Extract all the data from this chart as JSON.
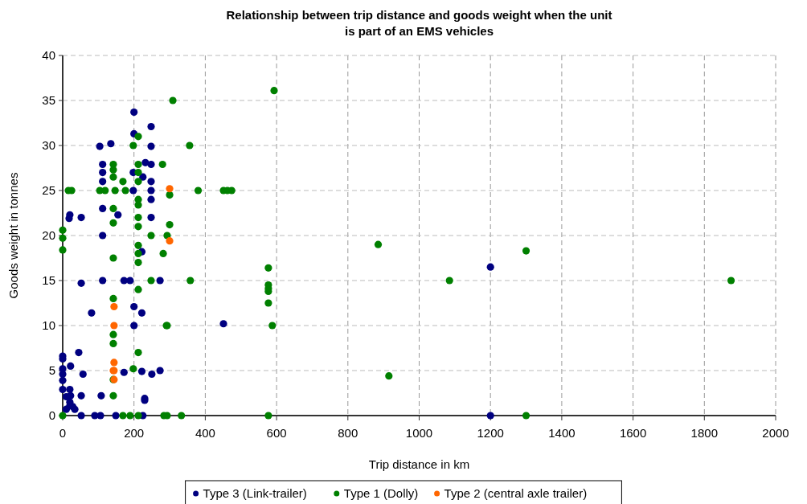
{
  "chart_data": {
    "type": "scatter",
    "title": "Relationship between trip distance and goods weight when the unit is part of an EMS vehicles",
    "xlabel": "Trip distance in km",
    "ylabel": "Goods weight in tonnes",
    "xlim": [
      0,
      2000
    ],
    "xticks": [
      0,
      200,
      400,
      600,
      800,
      1000,
      1200,
      1400,
      1600,
      1800,
      2000
    ],
    "ylim": [
      0,
      40
    ],
    "yticks": [
      0,
      5,
      10,
      15,
      20,
      25,
      30,
      35,
      40
    ],
    "grid": true,
    "legend": "bottom",
    "marker": "circle",
    "series": [
      {
        "name": "Type 3 (Link-trailer)",
        "color": "#000080",
        "x": [
          0,
          0,
          0,
          0,
          0,
          0,
          20,
          10,
          22,
          20,
          20,
          28,
          34,
          10,
          22,
          45,
          57,
          52,
          52,
          90,
          106,
          108,
          81,
          52,
          112,
          172,
          189,
          273,
          200,
          222,
          200,
          172,
          222,
          250,
          273,
          230,
          230,
          149,
          225,
          222,
          200,
          248,
          200,
          104,
          135,
          248,
          112,
          232,
          248,
          112,
          198,
          225,
          112,
          248,
          198,
          248,
          248,
          112,
          155,
          20,
          18,
          52,
          248,
          112,
          451,
          1200,
          1200
        ],
        "values": [
          6.6,
          6.3,
          5.2,
          4.6,
          3.9,
          2.9,
          2.9,
          2.1,
          2.2,
          1.5,
          1.1,
          1.0,
          0.7,
          0.7,
          5.5,
          7.0,
          4.6,
          2.2,
          0,
          0,
          0,
          2.2,
          11.4,
          14.7,
          15,
          15,
          15,
          15,
          12.1,
          11.4,
          10,
          4.8,
          4.9,
          4.6,
          5.0,
          1.9,
          1.7,
          0,
          0,
          18.2,
          33.7,
          32.1,
          31.3,
          29.9,
          30.2,
          29.9,
          27.9,
          28.1,
          27.9,
          27.0,
          27.0,
          26.5,
          26.0,
          26.0,
          25.0,
          25,
          24.0,
          23.0,
          22.3,
          22.3,
          21.9,
          22.0,
          22,
          20.0,
          10.2,
          16.5,
          0
        ]
      },
      {
        "name": "Type 1 (Dolly)",
        "color": "#008000",
        "x": [
          309,
          212,
          198,
          356,
          142,
          212,
          280,
          142,
          142,
          169,
          212,
          212,
          16,
          25,
          104,
          119,
          147,
          176,
          300,
          212,
          212,
          142,
          142,
          300,
          212,
          212,
          0,
          0,
          248,
          293,
          0,
          212,
          212,
          282,
          142,
          212,
          248,
          358,
          212,
          142,
          142,
          293,
          142,
          212,
          198,
          142,
          142,
          0,
          169,
          189,
          212,
          284,
          293,
          333,
          593,
          380,
          451,
          462,
          474,
          577,
          577,
          577,
          577,
          577,
          588,
          291,
          577,
          885,
          915,
          1085,
          1300,
          1300,
          1875
        ],
        "values": [
          35.0,
          31.0,
          30,
          30,
          27.9,
          27.9,
          27.9,
          27.3,
          26.5,
          26.0,
          27,
          26.0,
          25,
          25,
          25,
          25,
          25,
          25,
          24.5,
          24,
          23.4,
          23.0,
          21.4,
          21.2,
          22.0,
          21.0,
          20.6,
          19.7,
          20.0,
          20,
          18.4,
          18.9,
          18.0,
          18.0,
          17.5,
          17.0,
          15,
          15,
          14.0,
          13.0,
          9.0,
          10,
          8.0,
          7.0,
          5.2,
          4.0,
          2.2,
          0,
          0,
          0,
          0,
          0,
          0,
          0,
          36.1,
          25,
          25,
          25,
          25,
          16.4,
          14.5,
          14.1,
          13.8,
          12.5,
          10,
          10,
          0,
          19,
          4.4,
          15,
          18.3,
          0,
          15
        ]
      },
      {
        "name": "Type 2 (central axle trailer)",
        "color": "#ff6600",
        "x": [
          300,
          300,
          144,
          144,
          144,
          144,
          142,
          144
        ],
        "values": [
          25.2,
          19.4,
          12.1,
          10,
          5.9,
          5.0,
          5.0,
          4.0
        ]
      }
    ]
  }
}
